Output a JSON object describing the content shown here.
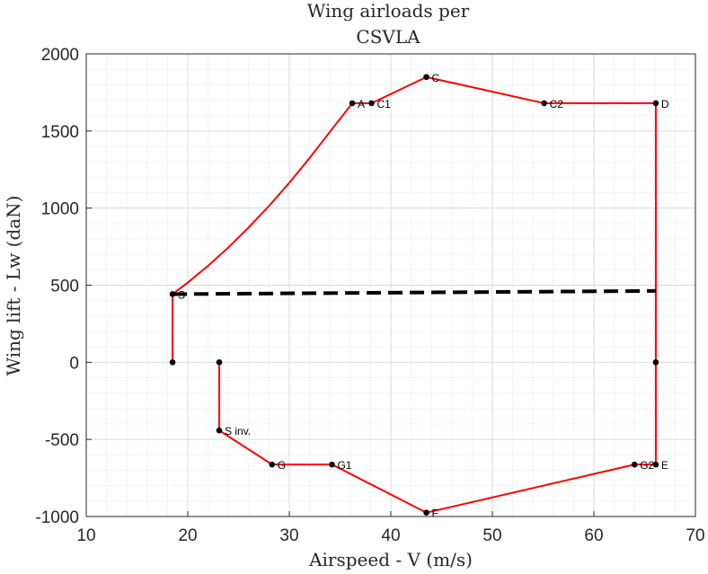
{
  "chart_data": {
    "type": "line",
    "title_lines": [
      "Wing airloads per",
      "CSVLA"
    ],
    "xlabel": "Airspeed - V (m/s)",
    "ylabel": "Wing lift - Lw (daN)",
    "xlim": [
      10,
      70
    ],
    "ylim": [
      -1000,
      2000
    ],
    "x_ticks": [
      10,
      20,
      30,
      40,
      50,
      60,
      70
    ],
    "y_ticks": [
      -1000,
      -500,
      0,
      500,
      1000,
      1500,
      2000
    ],
    "x_tick_labels": [
      "10",
      "20",
      "30",
      "40",
      "50",
      "60",
      "70"
    ],
    "y_tick_labels": [
      "-1000",
      "-500",
      "0",
      "500",
      "1000",
      "1500",
      "2000"
    ],
    "grid": "major and minor, dotted minor",
    "colors": {
      "envelope": "#ff0000",
      "points": "#000000",
      "weight_line": "#000000",
      "grid": "#d9d9d9"
    },
    "envelope_upper_curve": {
      "description": "stall curve from S to A",
      "x": [
        18.5,
        20,
        22,
        24,
        26,
        28,
        30,
        32,
        34,
        36.2
      ],
      "y": [
        442,
        517,
        626,
        745,
        875,
        1014,
        1164,
        1325,
        1495,
        1680
      ]
    },
    "envelope_polylines": [
      {
        "x": [
          18.5,
          18.5
        ],
        "y": [
          0,
          442
        ]
      },
      {
        "x": [
          36.2,
          38.1,
          43.5,
          55.1,
          66.1,
          66.1,
          66.1,
          64.0,
          43.5,
          34.2,
          28.3,
          23.1,
          23.1
        ],
        "y": [
          1680,
          1680,
          1850,
          1680,
          1680,
          0,
          -663,
          -663,
          -975,
          -663,
          -663,
          -442,
          0
        ]
      }
    ],
    "points": [
      {
        "label": "S",
        "x": 18.5,
        "y": 442
      },
      {
        "label": "",
        "x": 18.5,
        "y": 0
      },
      {
        "label": "A",
        "x": 36.2,
        "y": 1680
      },
      {
        "label": "C1",
        "x": 38.1,
        "y": 1680
      },
      {
        "label": "C",
        "x": 43.5,
        "y": 1850
      },
      {
        "label": "C2",
        "x": 55.1,
        "y": 1680
      },
      {
        "label": "D",
        "x": 66.1,
        "y": 1680
      },
      {
        "label": "",
        "x": 66.1,
        "y": 0
      },
      {
        "label": "E",
        "x": 66.1,
        "y": -663
      },
      {
        "label": "G2",
        "x": 64.0,
        "y": -663
      },
      {
        "label": "F",
        "x": 43.5,
        "y": -975
      },
      {
        "label": "G1",
        "x": 34.2,
        "y": -663
      },
      {
        "label": "G",
        "x": 28.3,
        "y": -663
      },
      {
        "label": "S inv.",
        "x": 23.1,
        "y": -442
      },
      {
        "label": "",
        "x": 23.1,
        "y": 0
      }
    ],
    "weight_line": {
      "style": "dashed",
      "x": [
        18.5,
        66.1
      ],
      "y": [
        442,
        463
      ]
    }
  }
}
